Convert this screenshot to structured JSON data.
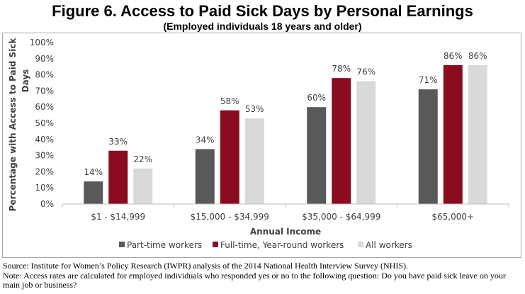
{
  "title": "Figure 6. Access to Paid Sick Days by Personal Earnings",
  "subtitle": "(Employed individuals 18 years and older)",
  "source": "Source: Institute for Women’s Policy Research (IWPR) analysis of the 2014 National Health Interview Survey (NHIS).",
  "note": "Note: Access rates are calculated for employed individuals who responded yes or no to the following question: Do you have paid sick leave on your main job or business?",
  "colors": {
    "part_time": "#595959",
    "full_time": "#8b0c1f",
    "all": "#d9d9d9",
    "axis": "#bfbfbf",
    "text": "#404040"
  },
  "chart_data": {
    "type": "bar",
    "xlabel": "Annual Income",
    "ylabel": "Percentage with Access to Paid Sick Days",
    "ylim": [
      0,
      100
    ],
    "yticks": [
      "0%",
      "10%",
      "20%",
      "30%",
      "40%",
      "50%",
      "60%",
      "70%",
      "80%",
      "90%",
      "100%"
    ],
    "grid": false,
    "legend": "bottom",
    "categories": [
      "$1 - $14,999",
      "$15,000 - $34,999",
      "$35,000 - $64,999",
      "$65,000+"
    ],
    "series": [
      {
        "name": "Part-time workers",
        "values": [
          14,
          34,
          60,
          71
        ],
        "labels": [
          "14%",
          "34%",
          "60%",
          "71%"
        ]
      },
      {
        "name": "Full-time, Year-round workers",
        "values": [
          33,
          58,
          78,
          86
        ],
        "labels": [
          "33%",
          "58%",
          "78%",
          "86%"
        ]
      },
      {
        "name": "All workers",
        "values": [
          22,
          53,
          76,
          86
        ],
        "labels": [
          "22%",
          "53%",
          "76%",
          "86%"
        ]
      }
    ]
  }
}
